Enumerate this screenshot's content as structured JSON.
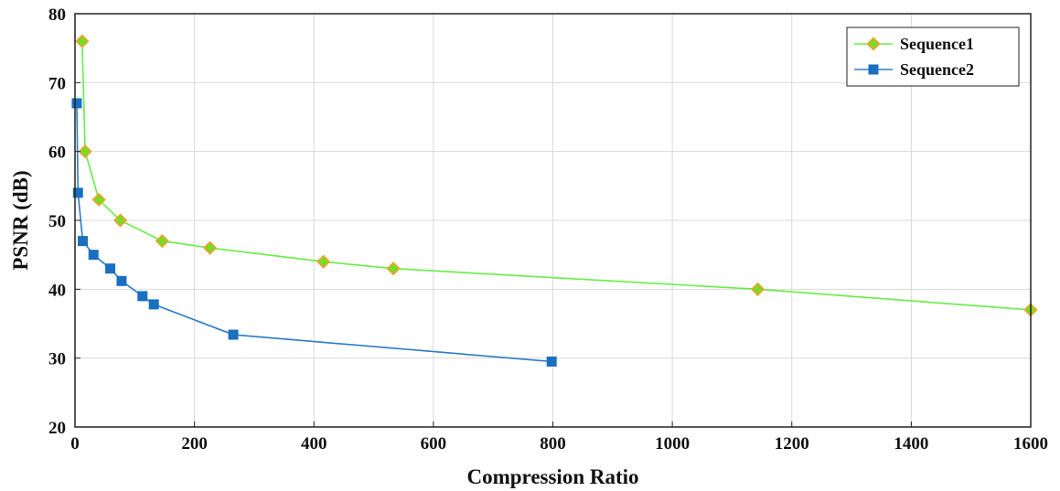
{
  "chart_data": {
    "type": "line",
    "title": "",
    "xlabel": "Compression Ratio",
    "ylabel": "PSNR (dB)",
    "xlim": [
      0,
      1600
    ],
    "ylim": [
      20,
      80
    ],
    "x_ticks": [
      0,
      200,
      400,
      600,
      800,
      1000,
      1200,
      1400,
      1600
    ],
    "y_ticks": [
      20,
      30,
      40,
      50,
      60,
      70,
      80
    ],
    "grid": true,
    "legend_position": "top-right",
    "series": [
      {
        "name": "Sequence1",
        "line_color": "#66ee44",
        "marker": "diamond",
        "marker_fill": "#77dd22",
        "marker_edge": "#f0a030",
        "x": [
          12,
          17,
          40,
          76,
          146,
          226,
          416,
          533,
          1143,
          1600
        ],
        "y": [
          76,
          60,
          53,
          50,
          47,
          46,
          44,
          43,
          40,
          37
        ]
      },
      {
        "name": "Sequence2",
        "line_color": "#2b7bc6",
        "marker": "square",
        "marker_fill": "#1a6fc0",
        "marker_edge": "#1a6fc0",
        "x": [
          3,
          5,
          13,
          31,
          59,
          78,
          113,
          132,
          265,
          798
        ],
        "y": [
          67,
          54,
          47,
          45,
          43,
          41.2,
          39,
          37.8,
          33.4,
          29.5
        ]
      }
    ]
  }
}
